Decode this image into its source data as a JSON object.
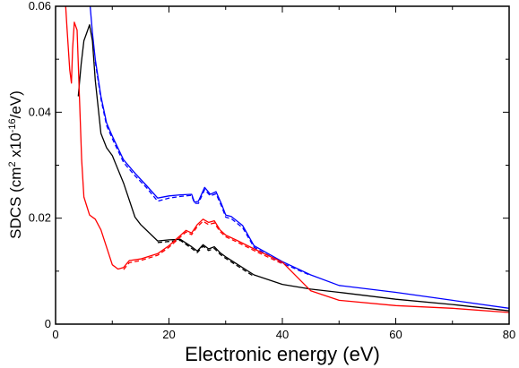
{
  "chart_data": {
    "type": "line",
    "xlabel": "Electronic energy (eV)",
    "ylabel_parts": {
      "base": "SDCS (cm",
      "sup1": "2",
      "mid": " x10",
      "sup2": "-16",
      "end": "/eV)"
    },
    "xlim": [
      0,
      80
    ],
    "ylim": [
      0,
      0.06
    ],
    "x_ticks": [
      0,
      20,
      40,
      60,
      80
    ],
    "x_tick_labels": [
      "0",
      "20",
      "40",
      "60",
      "80"
    ],
    "y_ticks": [
      0,
      0.02,
      0.04,
      0.06
    ],
    "y_tick_labels": [
      "0",
      "0.02",
      "0.04",
      "0.06"
    ],
    "grid": false,
    "series": [
      {
        "color": "#0000ff",
        "dashed": false,
        "points": [
          [
            5.7,
            0.065
          ],
          [
            6.1,
            0.06
          ],
          [
            6.5,
            0.055
          ],
          [
            7.0,
            0.05
          ],
          [
            8.0,
            0.043
          ],
          [
            9.0,
            0.038
          ],
          [
            10.0,
            0.0355
          ],
          [
            12.0,
            0.031
          ],
          [
            14.0,
            0.0285
          ],
          [
            16.0,
            0.0262
          ],
          [
            18.0,
            0.0238
          ],
          [
            20.0,
            0.0242
          ],
          [
            22.0,
            0.0244
          ],
          [
            24.0,
            0.0245
          ],
          [
            24.5,
            0.023
          ],
          [
            25.2,
            0.0232
          ],
          [
            26.3,
            0.0258
          ],
          [
            27.3,
            0.0245
          ],
          [
            28.3,
            0.025
          ],
          [
            29.3,
            0.0226
          ],
          [
            30.0,
            0.0206
          ],
          [
            31.0,
            0.0203
          ],
          [
            33.0,
            0.0186
          ],
          [
            35.0,
            0.0148
          ],
          [
            40.0,
            0.0118
          ],
          [
            45.0,
            0.0093
          ],
          [
            50.0,
            0.0073
          ],
          [
            60.0,
            0.006
          ],
          [
            70.0,
            0.0045
          ],
          [
            80.0,
            0.003
          ]
        ]
      },
      {
        "color": "#0000ff",
        "dashed": true,
        "points": [
          [
            7.0,
            0.0495
          ],
          [
            8.0,
            0.0425
          ],
          [
            9.0,
            0.0375
          ],
          [
            10.0,
            0.035
          ],
          [
            12.0,
            0.0305
          ],
          [
            14.0,
            0.028
          ],
          [
            16.0,
            0.0258
          ],
          [
            18.0,
            0.0232
          ],
          [
            20.0,
            0.0238
          ],
          [
            22.0,
            0.0241
          ],
          [
            24.0,
            0.0243
          ],
          [
            24.5,
            0.0228
          ],
          [
            25.2,
            0.0228
          ],
          [
            26.3,
            0.0254
          ],
          [
            27.3,
            0.0242
          ],
          [
            28.3,
            0.0246
          ],
          [
            29.3,
            0.0222
          ],
          [
            30.0,
            0.0202
          ],
          [
            31.0,
            0.0199
          ],
          [
            33.0,
            0.0182
          ],
          [
            35.0,
            0.0145
          ],
          [
            40.0,
            0.0115
          ],
          [
            45.0,
            0.0092
          ]
        ]
      },
      {
        "color": "#000000",
        "dashed": false,
        "points": [
          [
            4.0,
            0.043
          ],
          [
            4.5,
            0.049
          ],
          [
            5.0,
            0.0535
          ],
          [
            5.5,
            0.055
          ],
          [
            6.0,
            0.0565
          ],
          [
            6.5,
            0.0535
          ],
          [
            7.0,
            0.046
          ],
          [
            8.0,
            0.036
          ],
          [
            9.0,
            0.0333
          ],
          [
            10.0,
            0.0318
          ],
          [
            12.0,
            0.0266
          ],
          [
            14.0,
            0.0202
          ],
          [
            15.0,
            0.0188
          ],
          [
            18.0,
            0.0157
          ],
          [
            20.0,
            0.0159
          ],
          [
            22.0,
            0.016
          ],
          [
            24.0,
            0.0146
          ],
          [
            25.0,
            0.0138
          ],
          [
            26.0,
            0.015
          ],
          [
            27.0,
            0.0142
          ],
          [
            28.0,
            0.0146
          ],
          [
            29.0,
            0.0135
          ],
          [
            30.0,
            0.0127
          ],
          [
            35.0,
            0.0093
          ],
          [
            40.0,
            0.0075
          ],
          [
            45.0,
            0.0066
          ],
          [
            50.0,
            0.006
          ],
          [
            60.0,
            0.0047
          ],
          [
            70.0,
            0.0037
          ],
          [
            80.0,
            0.0025
          ]
        ]
      },
      {
        "color": "#000000",
        "dashed": true,
        "points": [
          [
            18.0,
            0.0154
          ],
          [
            20.0,
            0.0156
          ],
          [
            22.0,
            0.0158
          ],
          [
            24.0,
            0.0143
          ],
          [
            25.0,
            0.0135
          ],
          [
            26.0,
            0.0147
          ],
          [
            27.0,
            0.0139
          ],
          [
            28.0,
            0.0143
          ],
          [
            29.0,
            0.0132
          ],
          [
            30.0,
            0.0124
          ],
          [
            35.0,
            0.009
          ]
        ]
      },
      {
        "color": "#ff0000",
        "dashed": false,
        "points": [
          [
            1.5,
            0.065
          ],
          [
            2.0,
            0.056
          ],
          [
            2.5,
            0.048
          ],
          [
            2.8,
            0.0455
          ],
          [
            3.0,
            0.052
          ],
          [
            3.3,
            0.057
          ],
          [
            3.8,
            0.0555
          ],
          [
            4.2,
            0.043
          ],
          [
            4.6,
            0.031
          ],
          [
            5.0,
            0.024
          ],
          [
            6.0,
            0.0206
          ],
          [
            7.0,
            0.0198
          ],
          [
            8.0,
            0.0178
          ],
          [
            10.0,
            0.0112
          ],
          [
            11.0,
            0.0104
          ],
          [
            12.0,
            0.0107
          ],
          [
            13.0,
            0.012
          ],
          [
            15.0,
            0.0123
          ],
          [
            18.0,
            0.0133
          ],
          [
            20.0,
            0.0148
          ],
          [
            23.0,
            0.0177
          ],
          [
            24.0,
            0.0172
          ],
          [
            25.0,
            0.0188
          ],
          [
            26.0,
            0.0198
          ],
          [
            27.0,
            0.0192
          ],
          [
            28.0,
            0.0195
          ],
          [
            29.0,
            0.0178
          ],
          [
            30.0,
            0.0168
          ],
          [
            32.0,
            0.0158
          ],
          [
            35.0,
            0.0142
          ],
          [
            40.0,
            0.0117
          ],
          [
            45.0,
            0.0063
          ],
          [
            50.0,
            0.0045
          ],
          [
            60.0,
            0.0035
          ],
          [
            70.0,
            0.003
          ],
          [
            80.0,
            0.0022
          ]
        ]
      },
      {
        "color": "#ff0000",
        "dashed": true,
        "points": [
          [
            12.0,
            0.0103
          ],
          [
            13.0,
            0.0116
          ],
          [
            15.0,
            0.012
          ],
          [
            18.0,
            0.013
          ],
          [
            20.0,
            0.0145
          ],
          [
            23.0,
            0.0174
          ],
          [
            24.0,
            0.0169
          ],
          [
            25.0,
            0.0184
          ],
          [
            26.0,
            0.0194
          ],
          [
            27.0,
            0.0188
          ],
          [
            28.0,
            0.0191
          ],
          [
            29.0,
            0.0175
          ],
          [
            30.0,
            0.0165
          ],
          [
            32.0,
            0.0155
          ],
          [
            35.0,
            0.0139
          ],
          [
            40.0,
            0.0114
          ]
        ]
      }
    ]
  }
}
